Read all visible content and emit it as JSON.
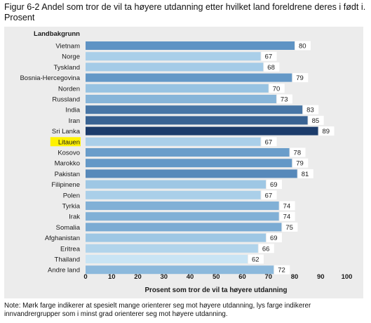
{
  "figure": {
    "title": "Figur 6-2 Andel som tror de vil ta høyere utdanning etter hvilket land foreldrene deres i født i. Prosent",
    "note": "Note: Mørk farge indikerer at spesielt mange orienterer seg mot høyere utdanning, lys farge indikerer innvandrergrupper som i minst grad orienterer seg mot høyere utdanning."
  },
  "chart_data": {
    "type": "bar",
    "orientation": "horizontal",
    "title": "",
    "category_axis_title": "Landbakgrunn",
    "xlabel": "Prosent som tror de vil ta høyere utdanning",
    "ylabel": "",
    "xlim": [
      0,
      100
    ],
    "x_ticks": [
      0,
      10,
      20,
      30,
      40,
      50,
      60,
      70,
      80,
      90,
      100
    ],
    "grid": false,
    "legend": "none",
    "highlighted_category": "Litauen",
    "highlight_color": "#fff200",
    "color_scale": {
      "light": "#c9e4f4",
      "mid": "#5e93c4",
      "dark": "#1c3c6b"
    },
    "categories": [
      "Vietnam",
      "Norge",
      "Tyskland",
      "Bosnia-Hercegovina",
      "Norden",
      "Russland",
      "India",
      "Iran",
      "Sri Lanka",
      "Litauen",
      "Kosovo",
      "Marokko",
      "Pakistan",
      "Filipinene",
      "Polen",
      "Tyrkia",
      "Irak",
      "Somalia",
      "Afghanistan",
      "Eritrea",
      "Thailand",
      "Andre land"
    ],
    "values": [
      80,
      67,
      68,
      79,
      70,
      73,
      83,
      85,
      89,
      67,
      78,
      79,
      81,
      69,
      67,
      74,
      74,
      75,
      69,
      66,
      62,
      72
    ]
  }
}
